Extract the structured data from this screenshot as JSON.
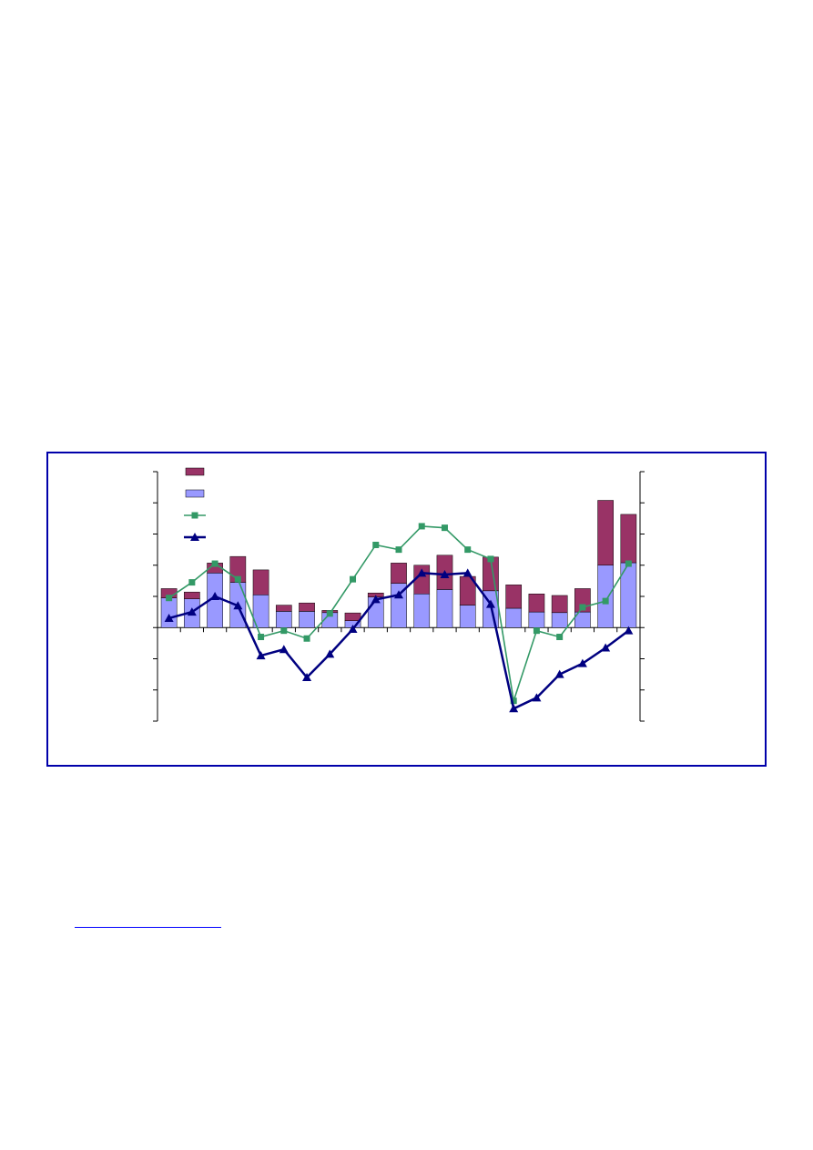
{
  "chart_data": {
    "type": "bar",
    "title": "",
    "xlabel": "",
    "ylabel": "",
    "x": [
      1,
      2,
      3,
      4,
      5,
      6,
      7,
      8,
      9,
      10,
      11,
      12,
      13,
      14,
      15,
      16,
      17,
      18,
      19,
      20,
      21
    ],
    "series": [
      {
        "kind": "bar",
        "axis": "left",
        "color": "#9999ff",
        "values": [
          0.95,
          0.92,
          1.75,
          1.45,
          1.05,
          0.52,
          0.52,
          0.48,
          0.22,
          0.98,
          1.42,
          1.08,
          1.22,
          0.72,
          1.18,
          0.62,
          0.5,
          0.48,
          0.5,
          2.0,
          2.08
        ]
      },
      {
        "kind": "bar",
        "axis": "left",
        "color": "#993366",
        "values": [
          0.3,
          0.22,
          0.32,
          0.83,
          0.8,
          0.2,
          0.27,
          0.07,
          0.25,
          0.13,
          0.65,
          0.92,
          1.1,
          0.92,
          1.08,
          0.75,
          0.58,
          0.55,
          0.75,
          2.08,
          1.55
        ]
      },
      {
        "kind": "line",
        "axis": "left",
        "color": "#339966",
        "marker": "square",
        "values": [
          0.95,
          1.45,
          2.05,
          1.55,
          -0.3,
          -0.1,
          -0.35,
          0.45,
          1.55,
          2.65,
          2.5,
          3.25,
          3.2,
          2.5,
          2.2,
          -2.35,
          -0.1,
          -0.3,
          0.65,
          0.85,
          2.05
        ]
      },
      {
        "kind": "line",
        "axis": "left",
        "color": "#000080",
        "marker": "triangle",
        "values": [
          0.3,
          0.5,
          1.0,
          0.7,
          -0.9,
          -0.7,
          -1.6,
          -0.85,
          -0.05,
          0.9,
          1.05,
          1.75,
          1.7,
          1.75,
          0.75,
          -2.6,
          -2.25,
          -1.5,
          -1.15,
          -0.65,
          -0.1
        ]
      }
    ],
    "ylim": [
      -3,
      5
    ],
    "yticks": [
      -3,
      -2,
      -1,
      0,
      1,
      2,
      3,
      4,
      5
    ],
    "y2lim": [
      -3,
      5
    ],
    "legend_position": "top-left",
    "grid": false
  }
}
